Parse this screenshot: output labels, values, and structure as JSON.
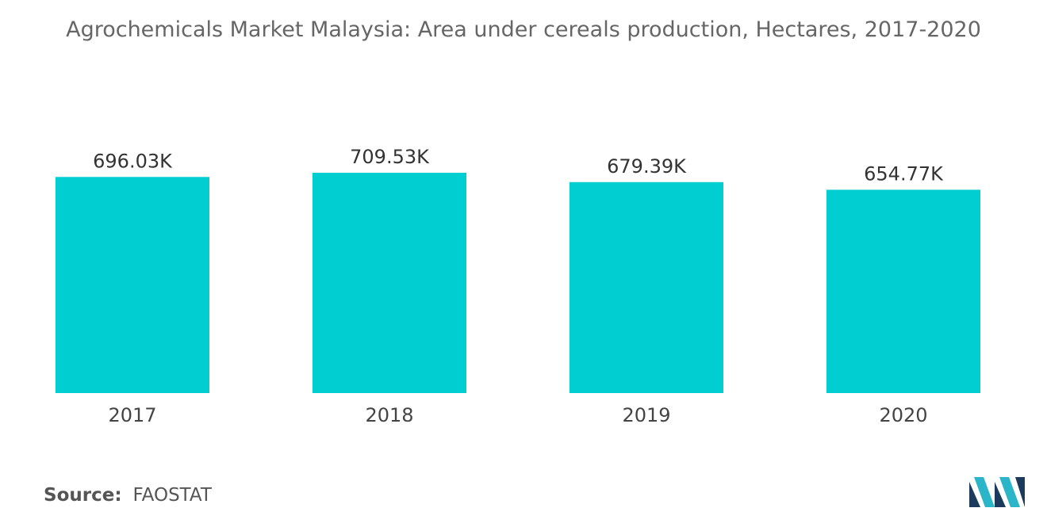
{
  "title": "Agrochemicals Market Malaysia: Area under cereals production, Hectares, 2017-2020",
  "source": {
    "label": "Source:",
    "value": "FAOSTAT"
  },
  "chart_data": {
    "type": "bar",
    "title": "Agrochemicals Market Malaysia: Area under cereals production, Hectares, 2017-2020",
    "xlabel": "",
    "ylabel": "",
    "categories": [
      "2017",
      "2018",
      "2019",
      "2020"
    ],
    "values": [
      696.03,
      709.53,
      679.39,
      654.77
    ],
    "data_labels": [
      "696.03K",
      "709.53K",
      "679.39K",
      "654.77K"
    ],
    "unit": "K",
    "ylim": [
      0,
      709.53
    ],
    "grid": false,
    "legend": "none",
    "bar_color": "#00CED1"
  },
  "logo": {
    "icon": "mordor-intelligence-logo-icon",
    "colors": [
      "#1B3A5C",
      "#2BB5C8"
    ]
  }
}
